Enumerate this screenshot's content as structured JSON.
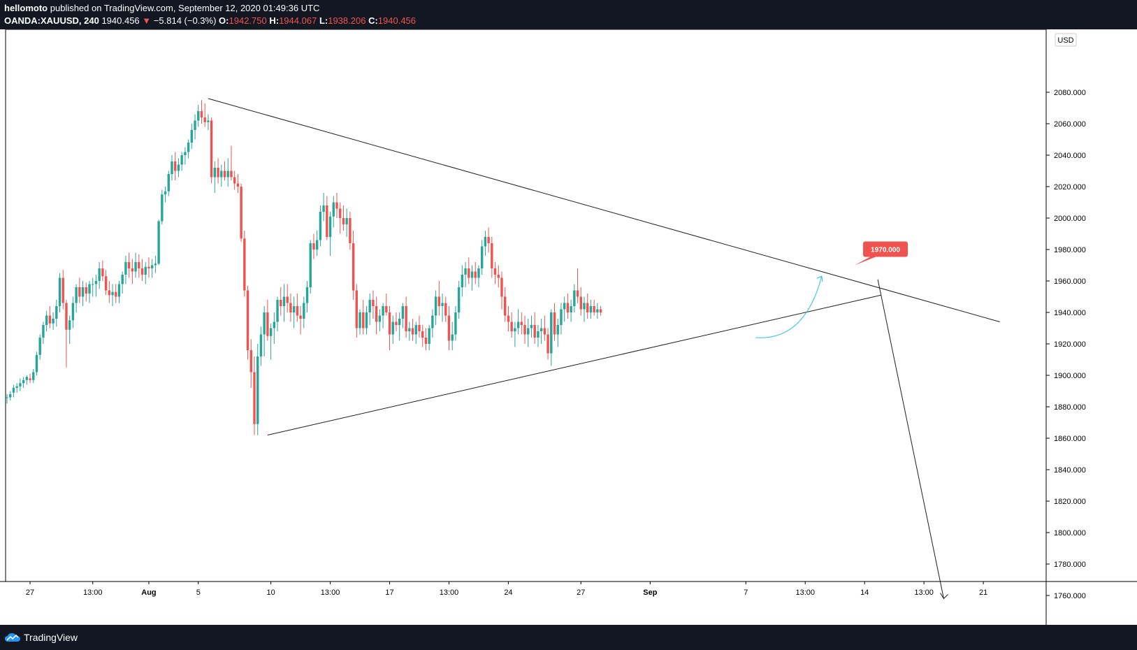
{
  "header": {
    "author": "hellomoto",
    "published_text": "published on TradingView.com, September 12, 2020 01:49:36 UTC",
    "symbol": "OANDA:XAUUSD, 240",
    "last": "1940.456",
    "change_arrow": "▼",
    "change": "−5.814 (−0.3%)",
    "open_label": "O:",
    "open": "1942.750",
    "high_label": "H:",
    "high": "1944.067",
    "low_label": "L:",
    "low": "1938.206",
    "close_label": "C:",
    "close": "1940.456"
  },
  "footer": {
    "brand": "TradingView",
    "logo_icon": "tradingview-cloud-icon"
  },
  "colors": {
    "up": "#26a69a",
    "down": "#ef5350",
    "line": "#1e1e1e",
    "accent_arrow": "#26c6da",
    "label_bg": "#ef5350"
  },
  "chart_data": {
    "type": "candlestick",
    "currency": "USD",
    "ylim": [
      1745,
      2090
    ],
    "y_ticks": [
      "2080.000",
      "2060.000",
      "2040.000",
      "2020.000",
      "2000.000",
      "1980.000",
      "1960.000",
      "1940.000",
      "1920.000",
      "1900.000",
      "1880.000",
      "1860.000",
      "1840.000",
      "1820.000",
      "1800.000",
      "1780.000",
      "1760.000"
    ],
    "y_tick_values": [
      2080,
      2060,
      2040,
      2020,
      2000,
      1980,
      1960,
      1940,
      1920,
      1900,
      1880,
      1860,
      1840,
      1820,
      1800,
      1780,
      1760
    ],
    "x_ticks": [
      {
        "label": "27",
        "bar": 7
      },
      {
        "label": "13:00",
        "bar": 26
      },
      {
        "label": "Aug",
        "bar": 43
      },
      {
        "label": "5",
        "bar": 58
      },
      {
        "label": "10",
        "bar": 80
      },
      {
        "label": "13:00",
        "bar": 98
      },
      {
        "label": "17",
        "bar": 116
      },
      {
        "label": "13:00",
        "bar": 134
      },
      {
        "label": "24",
        "bar": 152
      },
      {
        "label": "27",
        "bar": 174
      },
      {
        "label": "Sep",
        "bar": 195
      },
      {
        "label": "7",
        "bar": 224
      },
      {
        "label": "13:00",
        "bar": 242
      },
      {
        "label": "14",
        "bar": 260
      },
      {
        "label": "13:00",
        "bar": 278
      },
      {
        "label": "21",
        "bar": 296
      }
    ],
    "candles": [
      [
        1886,
        1888,
        1882,
        1886
      ],
      [
        1886,
        1890,
        1884,
        1888
      ],
      [
        1889,
        1894,
        1886,
        1892
      ],
      [
        1892,
        1895,
        1889,
        1893
      ],
      [
        1893,
        1898,
        1890,
        1895
      ],
      [
        1895,
        1899,
        1892,
        1897
      ],
      [
        1897,
        1900,
        1894,
        1899
      ],
      [
        1898,
        1901,
        1895,
        1897
      ],
      [
        1897,
        1904,
        1895,
        1902
      ],
      [
        1902,
        1915,
        1900,
        1913
      ],
      [
        1913,
        1926,
        1910,
        1924
      ],
      [
        1924,
        1934,
        1920,
        1932
      ],
      [
        1932,
        1941,
        1928,
        1938
      ],
      [
        1938,
        1944,
        1930,
        1933
      ],
      [
        1933,
        1940,
        1929,
        1936
      ],
      [
        1936,
        1948,
        1931,
        1944
      ],
      [
        1944,
        1965,
        1940,
        1962
      ],
      [
        1962,
        1967,
        1942,
        1946
      ],
      [
        1946,
        1948,
        1905,
        1929
      ],
      [
        1929,
        1938,
        1920,
        1935
      ],
      [
        1935,
        1950,
        1930,
        1946
      ],
      [
        1946,
        1958,
        1940,
        1956
      ],
      [
        1956,
        1962,
        1946,
        1950
      ],
      [
        1950,
        1960,
        1944,
        1956
      ],
      [
        1956,
        1959,
        1947,
        1952
      ],
      [
        1952,
        1960,
        1946,
        1958
      ],
      [
        1958,
        1962,
        1950,
        1958
      ],
      [
        1958,
        1964,
        1950,
        1960
      ],
      [
        1960,
        1972,
        1955,
        1968
      ],
      [
        1968,
        1973,
        1960,
        1963
      ],
      [
        1963,
        1967,
        1951,
        1954
      ],
      [
        1954,
        1960,
        1946,
        1951
      ],
      [
        1951,
        1958,
        1944,
        1953
      ],
      [
        1953,
        1958,
        1946,
        1950
      ],
      [
        1950,
        1960,
        1946,
        1958
      ],
      [
        1958,
        1966,
        1952,
        1964
      ],
      [
        1964,
        1976,
        1958,
        1972
      ],
      [
        1972,
        1978,
        1962,
        1968
      ],
      [
        1968,
        1974,
        1958,
        1966
      ],
      [
        1966,
        1978,
        1962,
        1972
      ],
      [
        1972,
        1977,
        1962,
        1968
      ],
      [
        1968,
        1974,
        1960,
        1964
      ],
      [
        1964,
        1972,
        1958,
        1969
      ],
      [
        1969,
        1975,
        1962,
        1968
      ],
      [
        1968,
        1974,
        1962,
        1970
      ],
      [
        1970,
        1976,
        1965,
        1971
      ],
      [
        1971,
        1999,
        1970,
        1998
      ],
      [
        1998,
        2018,
        1996,
        2015
      ],
      [
        2015,
        2020,
        2010,
        2017
      ],
      [
        2017,
        2030,
        2014,
        2028
      ],
      [
        2028,
        2040,
        2024,
        2036
      ],
      [
        2036,
        2042,
        2024,
        2030
      ],
      [
        2030,
        2038,
        2026,
        2034
      ],
      [
        2034,
        2042,
        2030,
        2040
      ],
      [
        2040,
        2045,
        2034,
        2042
      ],
      [
        2042,
        2050,
        2038,
        2048
      ],
      [
        2048,
        2060,
        2044,
        2056
      ],
      [
        2056,
        2066,
        2050,
        2062
      ],
      [
        2062,
        2072,
        2058,
        2068
      ],
      [
        2068,
        2075,
        2060,
        2064
      ],
      [
        2064,
        2073,
        2058,
        2061
      ],
      [
        2061,
        2066,
        2056,
        2062
      ],
      [
        2062,
        2064,
        2022,
        2026
      ],
      [
        2026,
        2036,
        2016,
        2032
      ],
      [
        2032,
        2038,
        2022,
        2026
      ],
      [
        2026,
        2034,
        2020,
        2030
      ],
      [
        2030,
        2036,
        2024,
        2026
      ],
      [
        2026,
        2038,
        2020,
        2030
      ],
      [
        2030,
        2046,
        2024,
        2026
      ],
      [
        2026,
        2030,
        2018,
        2022
      ],
      [
        2022,
        2028,
        2016,
        2020
      ],
      [
        2020,
        2022,
        1985,
        1987
      ],
      [
        1987,
        1992,
        1950,
        1954
      ],
      [
        1954,
        1957,
        1910,
        1916
      ],
      [
        1916,
        1923,
        1892,
        1902
      ],
      [
        1902,
        1912,
        1862,
        1869
      ],
      [
        1869,
        1920,
        1862,
        1912
      ],
      [
        1912,
        1931,
        1906,
        1926
      ],
      [
        1926,
        1944,
        1912,
        1940
      ],
      [
        1940,
        1948,
        1922,
        1925
      ],
      [
        1925,
        1933,
        1910,
        1930
      ],
      [
        1930,
        1940,
        1920,
        1934
      ],
      [
        1934,
        1950,
        1928,
        1948
      ],
      [
        1948,
        1956,
        1938,
        1944
      ],
      [
        1944,
        1958,
        1934,
        1950
      ],
      [
        1950,
        1958,
        1940,
        1946
      ],
      [
        1946,
        1952,
        1934,
        1940
      ],
      [
        1940,
        1950,
        1930,
        1944
      ],
      [
        1944,
        1952,
        1934,
        1938
      ],
      [
        1938,
        1944,
        1926,
        1936
      ],
      [
        1936,
        1950,
        1930,
        1946
      ],
      [
        1946,
        1960,
        1940,
        1956
      ],
      [
        1956,
        1986,
        1952,
        1984
      ],
      [
        1984,
        1990,
        1974,
        1980
      ],
      [
        1980,
        1992,
        1976,
        1986
      ],
      [
        1986,
        2008,
        1982,
        2004
      ],
      [
        2004,
        2016,
        1998,
        2008
      ],
      [
        2008,
        2014,
        1986,
        1988
      ],
      [
        1988,
        2004,
        1976,
        2001
      ],
      [
        2001,
        2014,
        1994,
        2010
      ],
      [
        2010,
        2016,
        2000,
        2006
      ],
      [
        2006,
        2010,
        1990,
        2000
      ],
      [
        2000,
        2008,
        1992,
        1996
      ],
      [
        1996,
        2006,
        1988,
        2000
      ],
      [
        2000,
        2004,
        1980,
        1984
      ],
      [
        1984,
        1992,
        1948,
        1954
      ],
      [
        1954,
        1958,
        1924,
        1930
      ],
      [
        1930,
        1942,
        1926,
        1940
      ],
      [
        1940,
        1948,
        1926,
        1930
      ],
      [
        1930,
        1944,
        1926,
        1940
      ],
      [
        1940,
        1952,
        1932,
        1948
      ],
      [
        1948,
        1954,
        1936,
        1944
      ],
      [
        1944,
        1950,
        1926,
        1934
      ],
      [
        1934,
        1942,
        1928,
        1938
      ],
      [
        1938,
        1946,
        1930,
        1944
      ],
      [
        1944,
        1952,
        1938,
        1940
      ],
      [
        1940,
        1944,
        1916,
        1926
      ],
      [
        1926,
        1938,
        1920,
        1934
      ],
      [
        1934,
        1940,
        1928,
        1932
      ],
      [
        1932,
        1940,
        1922,
        1936
      ],
      [
        1936,
        1946,
        1930,
        1944
      ],
      [
        1944,
        1950,
        1924,
        1928
      ],
      [
        1928,
        1934,
        1922,
        1930
      ],
      [
        1930,
        1936,
        1922,
        1926
      ],
      [
        1926,
        1934,
        1920,
        1932
      ],
      [
        1932,
        1938,
        1924,
        1928
      ],
      [
        1928,
        1932,
        1918,
        1924
      ],
      [
        1924,
        1930,
        1916,
        1920
      ],
      [
        1920,
        1932,
        1916,
        1930
      ],
      [
        1930,
        1942,
        1924,
        1938
      ],
      [
        1938,
        1954,
        1932,
        1950
      ],
      [
        1950,
        1960,
        1938,
        1944
      ],
      [
        1944,
        1952,
        1934,
        1946
      ],
      [
        1946,
        1950,
        1934,
        1938
      ],
      [
        1938,
        1944,
        1916,
        1922
      ],
      [
        1922,
        1934,
        1916,
        1926
      ],
      [
        1926,
        1944,
        1922,
        1940
      ],
      [
        1940,
        1960,
        1936,
        1956
      ],
      [
        1956,
        1970,
        1950,
        1964
      ],
      [
        1964,
        1972,
        1956,
        1968
      ],
      [
        1968,
        1975,
        1958,
        1962
      ],
      [
        1962,
        1970,
        1954,
        1966
      ],
      [
        1966,
        1972,
        1958,
        1962
      ],
      [
        1962,
        1970,
        1956,
        1968
      ],
      [
        1968,
        1986,
        1964,
        1982
      ],
      [
        1982,
        1992,
        1976,
        1988
      ],
      [
        1988,
        1994,
        1978,
        1984
      ],
      [
        1984,
        1988,
        1962,
        1968
      ],
      [
        1968,
        1972,
        1958,
        1964
      ],
      [
        1964,
        1970,
        1956,
        1962
      ],
      [
        1962,
        1966,
        1942,
        1950
      ],
      [
        1950,
        1956,
        1934,
        1938
      ],
      [
        1938,
        1944,
        1928,
        1934
      ],
      [
        1934,
        1940,
        1924,
        1928
      ],
      [
        1928,
        1934,
        1918,
        1930
      ],
      [
        1930,
        1942,
        1926,
        1934
      ],
      [
        1934,
        1940,
        1926,
        1932
      ],
      [
        1932,
        1938,
        1920,
        1926
      ],
      [
        1926,
        1936,
        1918,
        1930
      ],
      [
        1930,
        1938,
        1924,
        1932
      ],
      [
        1932,
        1940,
        1920,
        1924
      ],
      [
        1924,
        1932,
        1918,
        1928
      ],
      [
        1928,
        1936,
        1920,
        1930
      ],
      [
        1930,
        1938,
        1922,
        1926
      ],
      [
        1926,
        1930,
        1910,
        1914
      ],
      [
        1914,
        1942,
        1906,
        1940
      ],
      [
        1940,
        1946,
        1922,
        1926
      ],
      [
        1926,
        1936,
        1918,
        1932
      ],
      [
        1932,
        1946,
        1926,
        1942
      ],
      [
        1942,
        1950,
        1934,
        1946
      ],
      [
        1946,
        1952,
        1936,
        1940
      ],
      [
        1940,
        1948,
        1934,
        1944
      ],
      [
        1944,
        1958,
        1940,
        1954
      ],
      [
        1954,
        1968,
        1946,
        1950
      ],
      [
        1950,
        1956,
        1938,
        1942
      ],
      [
        1942,
        1950,
        1934,
        1946
      ],
      [
        1946,
        1952,
        1936,
        1940
      ],
      [
        1940,
        1948,
        1936,
        1944
      ],
      [
        1944,
        1948,
        1938,
        1940
      ],
      [
        1940,
        1946,
        1936,
        1942
      ],
      [
        1942,
        1944,
        1938,
        1940
      ]
    ],
    "trendlines": [
      {
        "name": "descending-resistance",
        "from": [
          61,
          2076
        ],
        "to": [
          301,
          1934
        ]
      },
      {
        "name": "ascending-support",
        "from": [
          79,
          1862
        ],
        "to": [
          265,
          1951
        ]
      },
      {
        "name": "projection-arrow",
        "from": [
          264,
          1961
        ],
        "to": [
          284,
          1758
        ]
      }
    ],
    "curved_arrow": {
      "from": [
        227,
        1924
      ],
      "to": [
        247,
        1963
      ]
    },
    "annotation": {
      "label": "1970.000",
      "price": 1970,
      "bar": 257
    }
  }
}
